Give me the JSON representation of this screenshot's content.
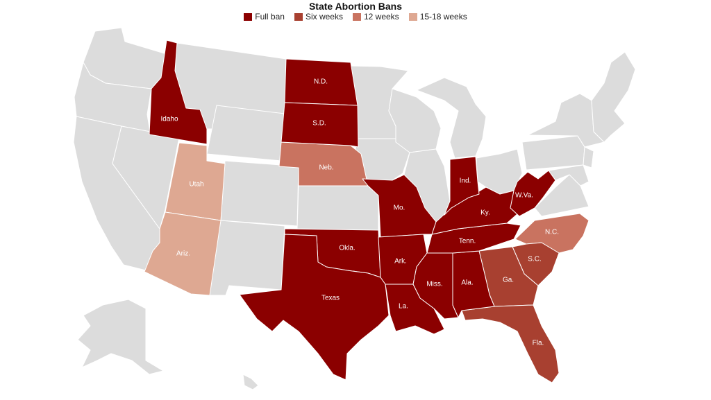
{
  "title": "State Abortion Bans",
  "colors": {
    "full_ban": "#8b0000",
    "six_weeks": "#a84030",
    "twelve_weeks": "#c97360",
    "fifteen_eighteen": "#dea892",
    "none": "#dcdcdc"
  },
  "legend": {
    "full_ban": "Full ban",
    "six_weeks": "Six weeks",
    "twelve_weeks": "12 weeks",
    "fifteen_eighteen": "15-18 weeks"
  },
  "labels": {
    "idaho": "Idaho",
    "nd": "N.D.",
    "sd": "S.D.",
    "neb": "Neb.",
    "utah": "Utah",
    "ariz": "Ariz.",
    "okla": "Okla.",
    "texas": "Texas",
    "mo": "Mo.",
    "ark": "Ark.",
    "la": "La.",
    "ind": "Ind.",
    "ky": "Ky.",
    "wva": "W.Va.",
    "tenn": "Tenn.",
    "miss": "Miss.",
    "ala": "Ala.",
    "ga": "Ga.",
    "sc": "S.C.",
    "nc": "N.C.",
    "fla": "Fla."
  }
}
